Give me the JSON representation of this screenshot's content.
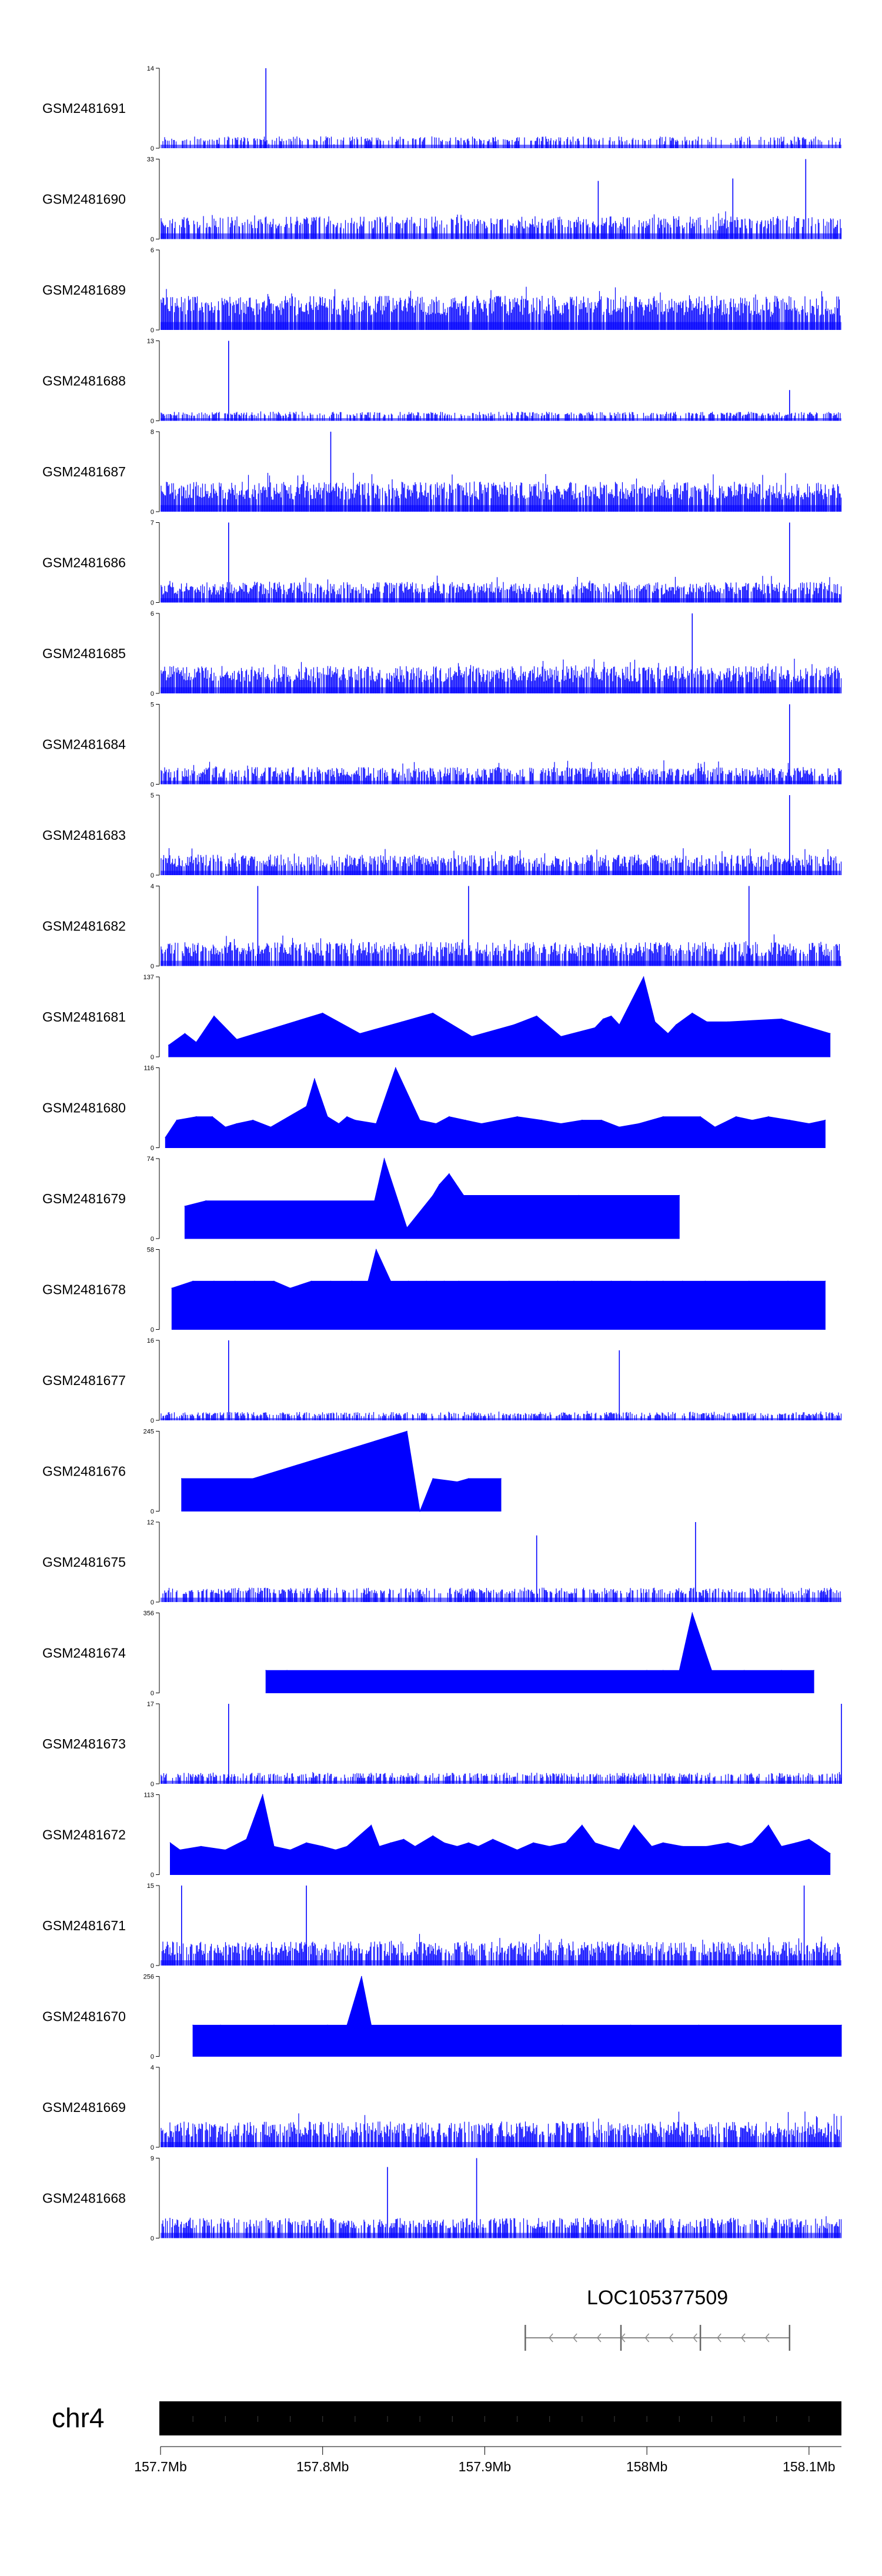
{
  "chart_data": {
    "type": "genome-browser-tracks",
    "x_start_mb": 157.7,
    "x_end_mb": 158.12,
    "axis": {
      "chromosome": "chr4",
      "ticks": [
        {
          "value": 157.7,
          "label": "157.7Mb"
        },
        {
          "value": 157.8,
          "label": "157.8Mb"
        },
        {
          "value": 157.9,
          "label": "157.9Mb"
        },
        {
          "value": 158.0,
          "label": "158Mb"
        },
        {
          "value": 158.1,
          "label": "158.1Mb"
        }
      ]
    },
    "gene": {
      "name": "LOC105377509",
      "start_mb": 157.925,
      "end_mb": 158.088,
      "strand": "-",
      "exons_mb": [
        157.925,
        157.984,
        158.033,
        158.088
      ]
    },
    "color": "#0000ff",
    "tracks": [
      {
        "name": "GSM2481691",
        "ymax": 14,
        "ymin": 0,
        "style": "dense",
        "density": 0.42,
        "base": 0.08,
        "noise": 0.15,
        "seed": 11,
        "peaks": [
          [
            157.765,
            14
          ]
        ]
      },
      {
        "name": "GSM2481690",
        "ymax": 33,
        "ymin": 0,
        "style": "dense",
        "density": 0.6,
        "base": 0.13,
        "noise": 0.35,
        "seed": 12,
        "peaks": [
          [
            157.97,
            24
          ],
          [
            158.053,
            25
          ],
          [
            158.098,
            33
          ]
        ]
      },
      {
        "name": "GSM2481689",
        "ymax": 6,
        "ymin": 0,
        "style": "dense",
        "density": 0.9,
        "base": 0.18,
        "noise": 0.55,
        "seed": 13,
        "peaks": []
      },
      {
        "name": "GSM2481688",
        "ymax": 13,
        "ymin": 0,
        "style": "dense",
        "density": 0.55,
        "base": 0.06,
        "noise": 0.12,
        "seed": 14,
        "peaks": [
          [
            157.742,
            13
          ],
          [
            158.088,
            5
          ]
        ]
      },
      {
        "name": "GSM2481687",
        "ymax": 8,
        "ymin": 0,
        "style": "dense",
        "density": 0.9,
        "base": 0.15,
        "noise": 0.5,
        "seed": 15,
        "peaks": [
          [
            157.805,
            8
          ]
        ]
      },
      {
        "name": "GSM2481686",
        "ymax": 7,
        "ymin": 0,
        "style": "dense",
        "density": 0.8,
        "base": 0.1,
        "noise": 0.35,
        "seed": 16,
        "peaks": [
          [
            157.742,
            7
          ],
          [
            158.088,
            7
          ]
        ]
      },
      {
        "name": "GSM2481685",
        "ymax": 6,
        "ymin": 0,
        "style": "dense",
        "density": 0.85,
        "base": 0.14,
        "noise": 0.45,
        "seed": 17,
        "peaks": [
          [
            158.028,
            6
          ]
        ]
      },
      {
        "name": "GSM2481684",
        "ymax": 5,
        "ymin": 0,
        "style": "dense",
        "density": 0.75,
        "base": 0.08,
        "noise": 0.3,
        "seed": 18,
        "peaks": [
          [
            158.088,
            5
          ]
        ]
      },
      {
        "name": "GSM2481683",
        "ymax": 5,
        "ymin": 0,
        "style": "dense",
        "density": 0.75,
        "base": 0.1,
        "noise": 0.35,
        "seed": 19,
        "peaks": [
          [
            158.088,
            5
          ]
        ]
      },
      {
        "name": "GSM2481682",
        "ymax": 4,
        "ymin": 0,
        "style": "dense",
        "density": 0.8,
        "base": 0.12,
        "noise": 0.4,
        "seed": 20,
        "peaks": [
          [
            157.76,
            4
          ],
          [
            157.89,
            4
          ],
          [
            158.063,
            4
          ]
        ]
      },
      {
        "name": "GSM2481681",
        "ymax": 137,
        "ymin": 0,
        "style": "sparse",
        "peaks": [
          [
            157.705,
            20
          ],
          [
            157.715,
            40
          ],
          [
            157.722,
            25
          ],
          [
            157.733,
            70
          ],
          [
            157.747,
            30
          ],
          [
            157.8,
            75
          ],
          [
            157.823,
            40
          ],
          [
            157.849,
            60
          ],
          [
            157.868,
            75
          ],
          [
            157.892,
            35
          ],
          [
            157.918,
            55
          ],
          [
            157.932,
            70
          ],
          [
            157.947,
            35
          ],
          [
            157.968,
            50
          ],
          [
            157.973,
            65
          ],
          [
            157.978,
            70
          ],
          [
            157.983,
            55
          ],
          [
            157.998,
            137
          ],
          [
            158.005,
            60
          ],
          [
            158.013,
            40
          ],
          [
            158.018,
            55
          ],
          [
            158.028,
            75
          ],
          [
            158.037,
            60
          ],
          [
            158.05,
            60
          ],
          [
            158.083,
            65
          ],
          [
            158.113,
            40
          ]
        ]
      },
      {
        "name": "GSM2481680",
        "ymax": 116,
        "ymin": 0,
        "style": "sparse",
        "peaks": [
          [
            157.703,
            15
          ],
          [
            157.71,
            40
          ],
          [
            157.722,
            45
          ],
          [
            157.732,
            45
          ],
          [
            157.74,
            30
          ],
          [
            157.747,
            35
          ],
          [
            157.757,
            40
          ],
          [
            157.768,
            30
          ],
          [
            157.79,
            60
          ],
          [
            157.795,
            100
          ],
          [
            157.803,
            45
          ],
          [
            157.81,
            35
          ],
          [
            157.815,
            45
          ],
          [
            157.82,
            40
          ],
          [
            157.833,
            35
          ],
          [
            157.845,
            116
          ],
          [
            157.86,
            40
          ],
          [
            157.87,
            35
          ],
          [
            157.878,
            45
          ],
          [
            157.888,
            40
          ],
          [
            157.898,
            35
          ],
          [
            157.92,
            45
          ],
          [
            157.935,
            40
          ],
          [
            157.947,
            35
          ],
          [
            157.96,
            40
          ],
          [
            157.972,
            40
          ],
          [
            157.983,
            30
          ],
          [
            157.995,
            35
          ],
          [
            158.01,
            45
          ],
          [
            158.033,
            45
          ],
          [
            158.042,
            30
          ],
          [
            158.055,
            45
          ],
          [
            158.065,
            40
          ],
          [
            158.075,
            45
          ],
          [
            158.088,
            40
          ],
          [
            158.1,
            35
          ],
          [
            158.11,
            40
          ]
        ]
      },
      {
        "name": "GSM2481679",
        "ymax": 74,
        "ymin": 0,
        "style": "sparse",
        "peaks": [
          [
            157.715,
            30
          ],
          [
            157.728,
            35
          ],
          [
            157.832,
            35
          ],
          [
            157.838,
            74
          ],
          [
            157.852,
            10
          ],
          [
            157.868,
            40
          ],
          [
            157.872,
            50
          ],
          [
            157.878,
            60
          ],
          [
            157.887,
            40
          ],
          [
            157.958,
            40
          ],
          [
            158.02,
            40
          ]
        ]
      },
      {
        "name": "GSM2481678",
        "ymax": 58,
        "ymin": 0,
        "style": "sparse",
        "peaks": [
          [
            157.707,
            30
          ],
          [
            157.72,
            35
          ],
          [
            157.733,
            35
          ],
          [
            157.746,
            35
          ],
          [
            157.758,
            35
          ],
          [
            157.77,
            35
          ],
          [
            157.78,
            30
          ],
          [
            157.793,
            35
          ],
          [
            157.805,
            35
          ],
          [
            157.818,
            35
          ],
          [
            157.828,
            35
          ],
          [
            157.833,
            58
          ],
          [
            157.842,
            35
          ],
          [
            157.853,
            35
          ],
          [
            157.864,
            35
          ],
          [
            157.875,
            35
          ],
          [
            157.884,
            35
          ],
          [
            157.915,
            35
          ],
          [
            157.945,
            35
          ],
          [
            157.955,
            35
          ],
          [
            157.966,
            35
          ],
          [
            157.978,
            35
          ],
          [
            157.99,
            35
          ],
          [
            158.0,
            35
          ],
          [
            158.01,
            35
          ],
          [
            158.022,
            35
          ],
          [
            158.036,
            35
          ],
          [
            158.063,
            35
          ],
          [
            158.087,
            35
          ],
          [
            158.11,
            35
          ]
        ]
      },
      {
        "name": "GSM2481677",
        "ymax": 16,
        "ymin": 0,
        "style": "dense",
        "density": 0.55,
        "base": 0.05,
        "noise": 0.12,
        "seed": 21,
        "peaks": [
          [
            157.742,
            16
          ],
          [
            157.983,
            14
          ]
        ]
      },
      {
        "name": "GSM2481676",
        "ymax": 245,
        "ymin": 0,
        "style": "sparse",
        "peaks": [
          [
            157.713,
            100
          ],
          [
            157.757,
            100
          ],
          [
            157.852,
            245
          ],
          [
            157.86,
            0
          ],
          [
            157.868,
            100
          ],
          [
            157.883,
            90
          ],
          [
            157.89,
            100
          ],
          [
            157.91,
            100
          ]
        ]
      },
      {
        "name": "GSM2481675",
        "ymax": 12,
        "ymin": 0,
        "style": "dense",
        "density": 0.55,
        "base": 0.1,
        "noise": 0.18,
        "seed": 22,
        "peaks": [
          [
            157.932,
            10
          ],
          [
            158.03,
            12
          ]
        ]
      },
      {
        "name": "GSM2481674",
        "ymax": 356,
        "ymin": 0,
        "style": "sparse",
        "peaks": [
          [
            157.765,
            100
          ],
          [
            157.778,
            100
          ],
          [
            158.0,
            100
          ],
          [
            158.01,
            100
          ],
          [
            158.02,
            100
          ],
          [
            158.028,
            356
          ],
          [
            158.04,
            100
          ],
          [
            158.06,
            100
          ],
          [
            158.083,
            100
          ],
          [
            158.103,
            100
          ]
        ]
      },
      {
        "name": "GSM2481673",
        "ymax": 17,
        "ymin": 0,
        "style": "dense",
        "density": 0.55,
        "base": 0.07,
        "noise": 0.15,
        "seed": 23,
        "peaks": [
          [
            157.742,
            17
          ],
          [
            158.12,
            17
          ]
        ]
      },
      {
        "name": "GSM2481672",
        "ymax": 113,
        "ymin": 0,
        "style": "sparse",
        "peaks": [
          [
            157.706,
            45
          ],
          [
            157.712,
            35
          ],
          [
            157.725,
            40
          ],
          [
            157.74,
            35
          ],
          [
            157.753,
            50
          ],
          [
            157.763,
            113
          ],
          [
            157.77,
            40
          ],
          [
            157.78,
            35
          ],
          [
            157.79,
            45
          ],
          [
            157.8,
            40
          ],
          [
            157.808,
            35
          ],
          [
            157.815,
            40
          ],
          [
            157.83,
            70
          ],
          [
            157.835,
            40
          ],
          [
            157.842,
            45
          ],
          [
            157.85,
            50
          ],
          [
            157.857,
            40
          ],
          [
            157.868,
            55
          ],
          [
            157.875,
            45
          ],
          [
            157.883,
            40
          ],
          [
            157.89,
            45
          ],
          [
            157.896,
            40
          ],
          [
            157.905,
            50
          ],
          [
            157.92,
            35
          ],
          [
            157.93,
            45
          ],
          [
            157.94,
            40
          ],
          [
            157.95,
            45
          ],
          [
            157.96,
            70
          ],
          [
            157.968,
            45
          ],
          [
            157.975,
            40
          ],
          [
            157.983,
            35
          ],
          [
            157.992,
            70
          ],
          [
            158.003,
            40
          ],
          [
            158.01,
            45
          ],
          [
            158.022,
            40
          ],
          [
            158.037,
            40
          ],
          [
            158.05,
            45
          ],
          [
            158.058,
            40
          ],
          [
            158.065,
            45
          ],
          [
            158.075,
            70
          ],
          [
            158.083,
            40
          ],
          [
            158.092,
            45
          ],
          [
            158.1,
            50
          ],
          [
            158.113,
            30
          ]
        ]
      },
      {
        "name": "GSM2481671",
        "ymax": 15,
        "ymin": 0,
        "style": "dense",
        "density": 0.8,
        "base": 0.12,
        "noise": 0.4,
        "seed": 24,
        "peaks": [
          [
            157.713,
            15
          ],
          [
            157.79,
            15
          ],
          [
            158.097,
            15
          ]
        ]
      },
      {
        "name": "GSM2481670",
        "ymax": 256,
        "ymin": 0,
        "style": "sparse",
        "peaks": [
          [
            157.72,
            100
          ],
          [
            157.737,
            100
          ],
          [
            157.77,
            100
          ],
          [
            157.803,
            100
          ],
          [
            157.815,
            100
          ],
          [
            157.824,
            256
          ],
          [
            157.83,
            100
          ],
          [
            157.948,
            100
          ],
          [
            157.99,
            100
          ],
          [
            158.032,
            100
          ],
          [
            158.12,
            100
          ]
        ]
      },
      {
        "name": "GSM2481669",
        "ymax": 4,
        "ymin": 0,
        "style": "dense",
        "density": 0.8,
        "base": 0.12,
        "noise": 0.45,
        "seed": 25,
        "peaks": []
      },
      {
        "name": "GSM2481668",
        "ymax": 9,
        "ymin": 0,
        "style": "dense",
        "density": 0.65,
        "base": 0.12,
        "noise": 0.3,
        "seed": 26,
        "peaks": [
          [
            157.84,
            8
          ],
          [
            157.895,
            9
          ]
        ]
      }
    ]
  }
}
